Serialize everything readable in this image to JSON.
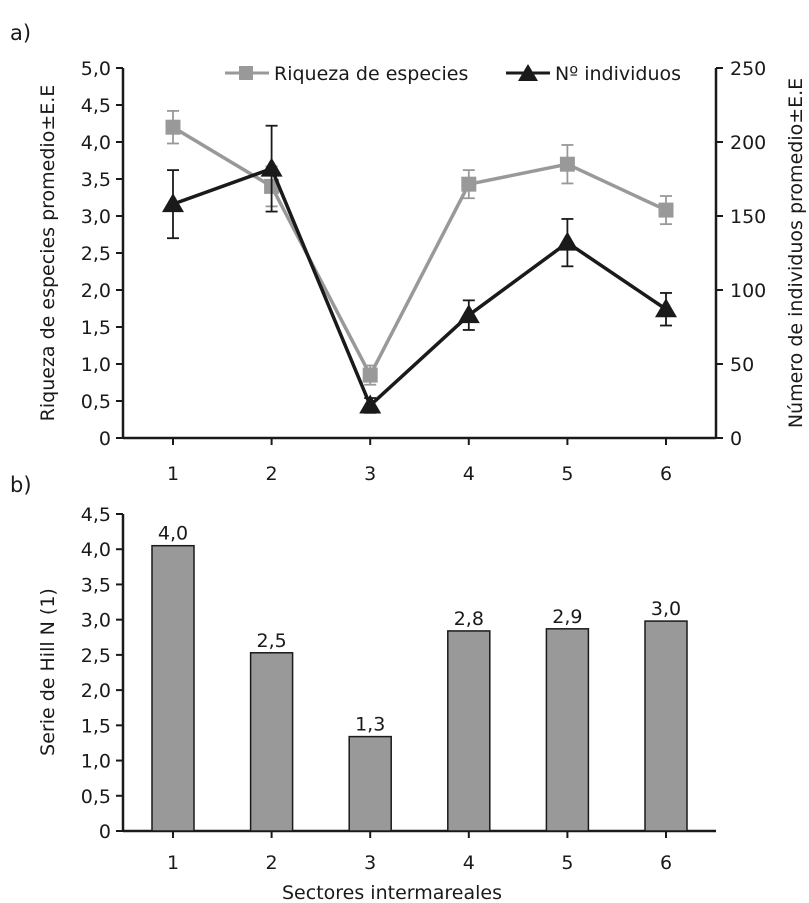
{
  "chart_data": [
    {
      "panel_label": "a)",
      "type": "line",
      "categories": [
        "1",
        "2",
        "3",
        "4",
        "5",
        "6"
      ],
      "series": [
        {
          "name": "Riqueza de especies",
          "axis": "left",
          "color": "#999999",
          "marker": "square",
          "values": [
            4.2,
            3.4,
            0.85,
            3.43,
            3.7,
            3.08
          ],
          "error": [
            0.22,
            0.27,
            0.13,
            0.19,
            0.26,
            0.19
          ]
        },
        {
          "name": "Nº individuos",
          "axis": "right",
          "color": "#1a1a1a",
          "marker": "triangle",
          "values": [
            158,
            182,
            22,
            83,
            132,
            87
          ],
          "error": [
            23,
            29,
            5,
            10,
            16,
            11
          ]
        }
      ],
      "ylabel": "Riqueza de especies  promedio±E.E",
      "y2label": "Número de individuos  promedio±E.E",
      "ylim": [
        0,
        5
      ],
      "y2lim": [
        0,
        250
      ],
      "yticks": [
        "0",
        "0,5",
        "1,0",
        "1,5",
        "2,0",
        "2,5",
        "3,0",
        "3,5",
        "4,0",
        "4,5",
        "5,0"
      ],
      "y2ticks": [
        "0",
        "50",
        "100",
        "150",
        "200",
        "250"
      ],
      "legend_position": "top-right",
      "grid": false
    },
    {
      "panel_label": "b)",
      "type": "bar",
      "categories": [
        "1",
        "2",
        "3",
        "4",
        "5",
        "6"
      ],
      "values": [
        4.05,
        2.53,
        1.34,
        2.84,
        2.87,
        2.98
      ],
      "data_labels": [
        "4,0",
        "2,5",
        "1,3",
        "2,8",
        "2,9",
        "3,0"
      ],
      "bar_color": "#999999",
      "xlabel": "Sectores intermareales",
      "ylabel": "Serie de Hill N (1)",
      "ylim": [
        0,
        4.5
      ],
      "yticks": [
        "0",
        "0,5",
        "1,0",
        "1,5",
        "2,0",
        "2,5",
        "3,0",
        "3,5",
        "4,0",
        "4,5"
      ],
      "grid": false
    }
  ]
}
